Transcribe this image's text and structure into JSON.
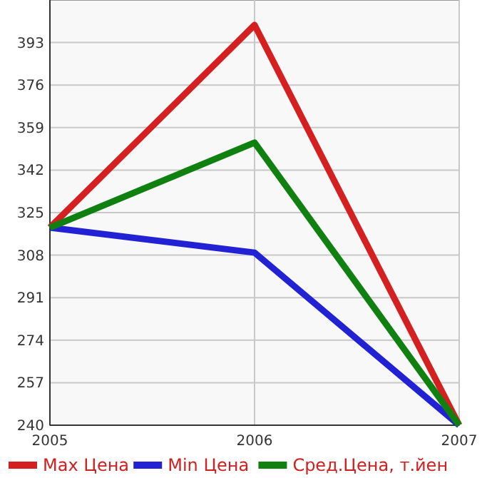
{
  "chart_data": {
    "type": "line",
    "x": [
      2005,
      2006,
      2007
    ],
    "xlim": [
      2005,
      2007
    ],
    "xticks": [
      2005,
      2006,
      2007
    ],
    "ylim": [
      240,
      410
    ],
    "yticks": [
      240,
      257,
      274,
      291,
      308,
      325,
      342,
      359,
      376,
      393
    ],
    "grid": true,
    "legend": "bottom",
    "marker": "none",
    "line_style": "solid",
    "series": [
      {
        "name": "Max Цена",
        "color": "#d42020",
        "values": [
          319,
          400,
          240
        ]
      },
      {
        "name": "Min Цена",
        "color": "#2222d4",
        "values": [
          319,
          309,
          240
        ]
      },
      {
        "name": "Сред.Цена, т.йен",
        "color": "#108010",
        "values": [
          319,
          353,
          240
        ]
      }
    ]
  }
}
